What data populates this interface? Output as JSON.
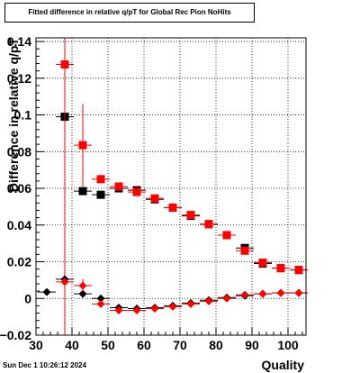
{
  "header": {
    "title": "Fitted difference in relative q/pT for Global Rec Pion NoHits"
  },
  "footer": {
    "datestamp": "Sun Dec  1 10:26:12 2024"
  },
  "colors": {
    "series_black": "#000000",
    "series_red": "#ff0000",
    "grid": "#000000"
  },
  "chart_data": {
    "type": "scatter",
    "title": "Fitted difference in relative q/pT for Global Rec Pion NoHits",
    "xlabel": "Quality",
    "ylabel": "Difference in relative q/pT",
    "xlim": [
      30,
      105
    ],
    "ylim": [
      -0.02,
      0.142
    ],
    "xticks": [
      30,
      40,
      50,
      60,
      70,
      80,
      90,
      100
    ],
    "yticks": [
      -0.02,
      0,
      0.02,
      0.04,
      0.06,
      0.08,
      0.1,
      0.12,
      0.14
    ],
    "ytick_labels": [
      "−0.02",
      "0",
      "0.02",
      "0.04",
      "0.06",
      "0.08",
      "0.1",
      "0.12",
      "0.14"
    ],
    "grid": true,
    "legend": "none",
    "series": [
      {
        "marker": "square",
        "color": "#000000",
        "points": [
          {
            "x": 38,
            "y": 0.099
          },
          {
            "x": 43,
            "y": 0.0585
          },
          {
            "x": 48,
            "y": 0.0565
          },
          {
            "x": 53,
            "y": 0.06
          },
          {
            "x": 58,
            "y": 0.059
          },
          {
            "x": 63,
            "y": 0.054
          },
          {
            "x": 68,
            "y": 0.0495
          },
          {
            "x": 73,
            "y": 0.045
          },
          {
            "x": 78,
            "y": 0.0405
          },
          {
            "x": 83,
            "y": 0.0345
          },
          {
            "x": 88,
            "y": 0.0275
          },
          {
            "x": 93,
            "y": 0.019
          },
          {
            "x": 98,
            "y": 0.0165
          },
          {
            "x": 103,
            "y": 0.0155
          }
        ]
      },
      {
        "marker": "square",
        "color": "#ff0000",
        "points": [
          {
            "x": 38,
            "y": 0.1275,
            "err": 0.1475
          },
          {
            "x": 43,
            "y": 0.0835,
            "err": 0.0225
          },
          {
            "x": 48,
            "y": 0.065
          },
          {
            "x": 53,
            "y": 0.061
          },
          {
            "x": 58,
            "y": 0.058
          },
          {
            "x": 63,
            "y": 0.0545
          },
          {
            "x": 68,
            "y": 0.0495
          },
          {
            "x": 73,
            "y": 0.0455
          },
          {
            "x": 78,
            "y": 0.0405
          },
          {
            "x": 83,
            "y": 0.0345
          },
          {
            "x": 88,
            "y": 0.026
          },
          {
            "x": 93,
            "y": 0.0195
          },
          {
            "x": 98,
            "y": 0.0165
          },
          {
            "x": 103,
            "y": 0.0155
          }
        ]
      },
      {
        "marker": "diamond",
        "color": "#000000",
        "points": [
          {
            "x": 33,
            "y": 0.0035
          },
          {
            "x": 38,
            "y": 0.0105
          },
          {
            "x": 43,
            "y": 0.0025
          },
          {
            "x": 48,
            "y": 0.0
          },
          {
            "x": 53,
            "y": -0.005
          },
          {
            "x": 58,
            "y": -0.0055
          },
          {
            "x": 63,
            "y": -0.005
          },
          {
            "x": 68,
            "y": -0.004
          },
          {
            "x": 73,
            "y": -0.0025
          },
          {
            "x": 78,
            "y": -0.001
          },
          {
            "x": 83,
            "y": 0.0005
          },
          {
            "x": 88,
            "y": 0.0015
          },
          {
            "x": 93,
            "y": 0.0025
          },
          {
            "x": 98,
            "y": 0.003
          },
          {
            "x": 103,
            "y": 0.003
          }
        ]
      },
      {
        "marker": "diamond",
        "color": "#ff0000",
        "points": [
          {
            "x": 38,
            "y": 0.009
          },
          {
            "x": 43,
            "y": 0.007,
            "err": 0.0035
          },
          {
            "x": 48,
            "y": -0.003
          },
          {
            "x": 53,
            "y": -0.0065
          },
          {
            "x": 58,
            "y": -0.0065
          },
          {
            "x": 63,
            "y": -0.0055
          },
          {
            "x": 68,
            "y": -0.0045
          },
          {
            "x": 73,
            "y": -0.003
          },
          {
            "x": 78,
            "y": -0.0015
          },
          {
            "x": 83,
            "y": 0.0
          },
          {
            "x": 88,
            "y": 0.002
          },
          {
            "x": 93,
            "y": 0.0025
          },
          {
            "x": 98,
            "y": 0.003
          },
          {
            "x": 103,
            "y": 0.003
          }
        ]
      }
    ]
  }
}
